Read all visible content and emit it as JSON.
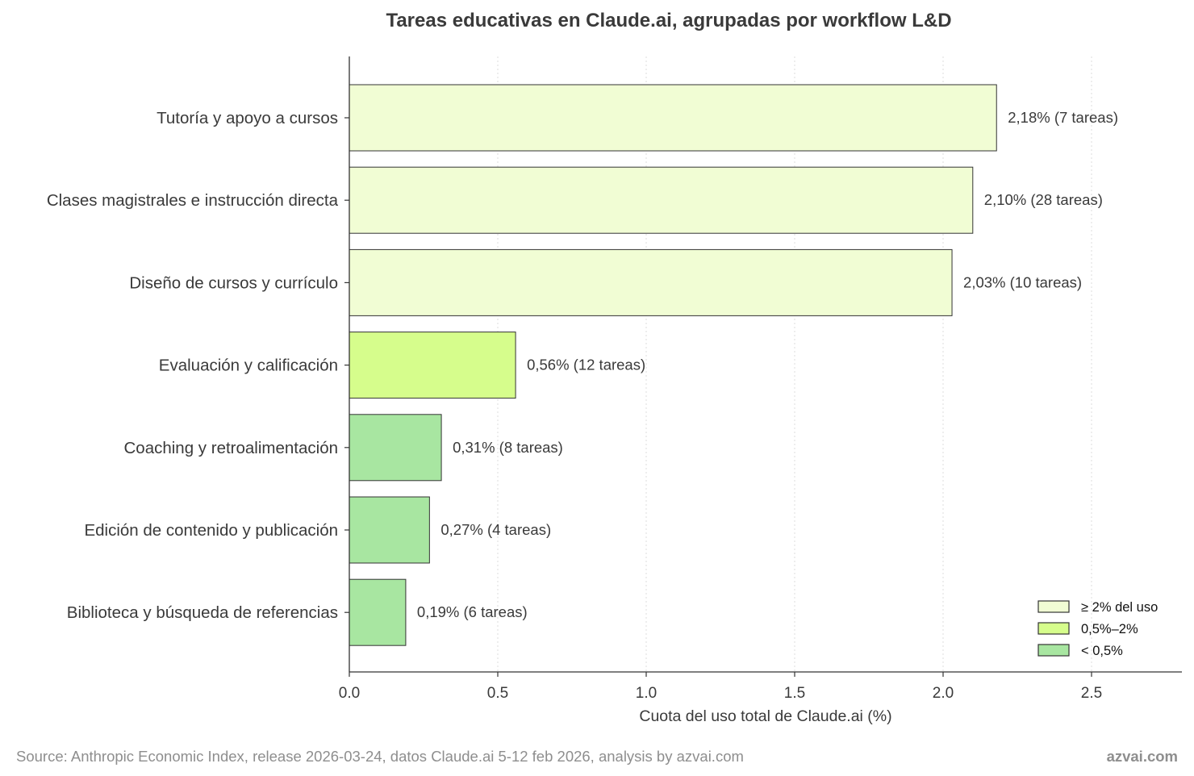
{
  "chart_data": {
    "type": "bar",
    "orientation": "horizontal",
    "title": "Tareas educativas en Claude.ai, agrupadas por workflow L&D",
    "xlabel": "Cuota del uso total de Claude.ai (%)",
    "xlim": [
      0,
      2.8
    ],
    "xticks": [
      0.0,
      0.5,
      1.0,
      1.5,
      2.0,
      2.5
    ],
    "xtick_labels": [
      "0.0",
      "0.5",
      "1.0",
      "1.5",
      "2.0",
      "2.5"
    ],
    "grid": "vertical dotted",
    "legend_position": "bottom-right",
    "categories": [
      "Tutoría y apoyo a cursos",
      "Clases magistrales e instrucción directa",
      "Diseño de cursos y currículo",
      "Evaluación y calificación",
      "Coaching y retroalimentación",
      "Edición de contenido y publicación",
      "Biblioteca y búsqueda de referencias"
    ],
    "values": [
      2.18,
      2.1,
      2.03,
      0.56,
      0.31,
      0.27,
      0.19
    ],
    "data_labels": [
      "2,18%  (7 tareas)",
      "2,10%  (28 tareas)",
      "2,03%  (10 tareas)",
      "0,56%  (12 tareas)",
      "0,31%  (8 tareas)",
      "0,27%  (4 tareas)",
      "0,19%  (6 tareas)"
    ],
    "bar_groups": [
      0,
      0,
      0,
      1,
      2,
      2,
      2
    ],
    "legend": [
      {
        "label": "≥ 2% del uso",
        "color": "#f1fdd4"
      },
      {
        "label": "0,5%–2%",
        "color": "#d6fd8c"
      },
      {
        "label": "< 0,5%",
        "color": "#a8e6a1"
      }
    ]
  },
  "footer": {
    "source": "Source: Anthropic Economic Index, release 2026-03-24, datos Claude.ai 5-12 feb 2026, analysis by azvai.com",
    "brand": "azvai.com"
  }
}
